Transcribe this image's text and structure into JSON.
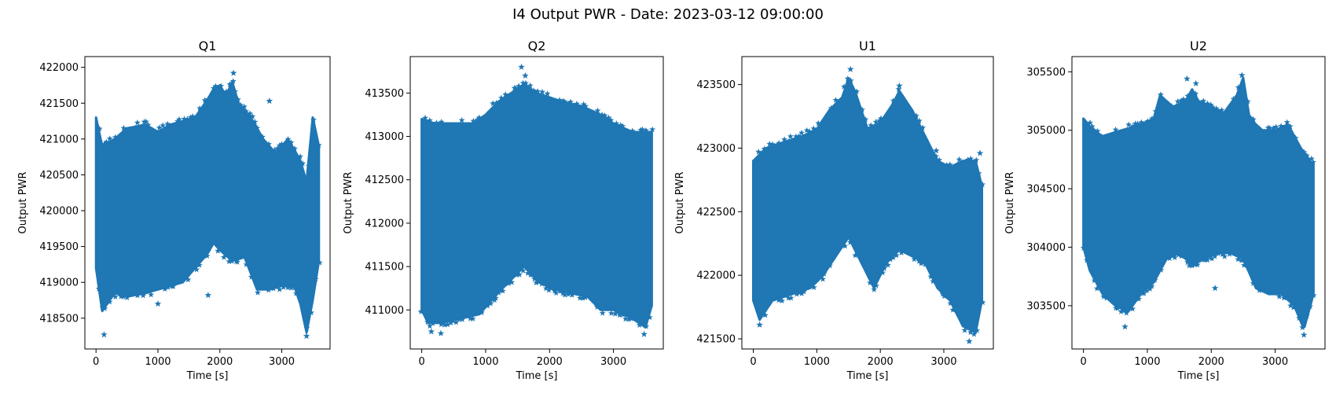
{
  "figure": {
    "title": "I4 Output PWR - Date: 2023-03-12 09:00:00"
  },
  "style": {
    "marker_color": "#1f77b4",
    "marker": "star"
  },
  "chart_data": [
    {
      "type": "scatter",
      "title": "Q1",
      "xlabel": "Time [s]",
      "ylabel": "Output PWR",
      "xlim": [
        -180,
        3780
      ],
      "ylim": [
        418070,
        422150
      ],
      "xticks": [
        0,
        1000,
        2000,
        3000
      ],
      "xtick_labels": [
        "0",
        "1000",
        "2000",
        "3000"
      ],
      "yticks": [
        418500,
        419000,
        419500,
        420000,
        420500,
        421000,
        421500,
        422000
      ],
      "ytick_labels": [
        "418500",
        "419000",
        "419500",
        "420000",
        "420500",
        "421000",
        "421500",
        "422000"
      ],
      "x_range": [
        0,
        3600
      ],
      "upper_envelope": [
        [
          0,
          421300
        ],
        [
          100,
          420900
        ],
        [
          300,
          421000
        ],
        [
          500,
          421150
        ],
        [
          800,
          421200
        ],
        [
          1000,
          421100
        ],
        [
          1200,
          421200
        ],
        [
          1400,
          421250
        ],
        [
          1600,
          421300
        ],
        [
          1800,
          421550
        ],
        [
          1900,
          421700
        ],
        [
          2000,
          421750
        ],
        [
          2100,
          421600
        ],
        [
          2200,
          421800
        ],
        [
          2300,
          421500
        ],
        [
          2500,
          421300
        ],
        [
          2700,
          421000
        ],
        [
          2900,
          420800
        ],
        [
          3100,
          421000
        ],
        [
          3300,
          420700
        ],
        [
          3400,
          420400
        ],
        [
          3500,
          421300
        ],
        [
          3600,
          420900
        ]
      ],
      "lower_envelope": [
        [
          0,
          419200
        ],
        [
          100,
          418600
        ],
        [
          300,
          418850
        ],
        [
          500,
          418800
        ],
        [
          800,
          418850
        ],
        [
          1000,
          418900
        ],
        [
          1200,
          418950
        ],
        [
          1400,
          419000
        ],
        [
          1600,
          419200
        ],
        [
          1800,
          419400
        ],
        [
          1900,
          419550
        ],
        [
          2000,
          419450
        ],
        [
          2200,
          419300
        ],
        [
          2400,
          419350
        ],
        [
          2600,
          418900
        ],
        [
          2800,
          418900
        ],
        [
          3000,
          418950
        ],
        [
          3200,
          418950
        ],
        [
          3300,
          418700
        ],
        [
          3400,
          418300
        ],
        [
          3500,
          418750
        ],
        [
          3600,
          419300
        ]
      ],
      "outliers": [
        [
          130,
          418270
        ],
        [
          2220,
          421920
        ],
        [
          2800,
          421530
        ],
        [
          1810,
          418820
        ],
        [
          1000,
          418700
        ],
        [
          3400,
          418250
        ]
      ]
    },
    {
      "type": "scatter",
      "title": "Q2",
      "xlabel": "Time [s]",
      "ylabel": "Output PWR",
      "xlim": [
        -180,
        3780
      ],
      "ylim": [
        410550,
        413920
      ],
      "xticks": [
        0,
        1000,
        2000,
        3000
      ],
      "xtick_labels": [
        "0",
        "1000",
        "2000",
        "3000"
      ],
      "yticks": [
        411000,
        411500,
        412000,
        412500,
        413000,
        413500
      ],
      "ytick_labels": [
        "411000",
        "411500",
        "412000",
        "412500",
        "413000",
        "413500"
      ],
      "x_range": [
        0,
        3600
      ],
      "upper_envelope": [
        [
          0,
          413200
        ],
        [
          200,
          413150
        ],
        [
          500,
          413150
        ],
        [
          800,
          413150
        ],
        [
          1000,
          413250
        ],
        [
          1200,
          413400
        ],
        [
          1400,
          413500
        ],
        [
          1600,
          413600
        ],
        [
          1800,
          413500
        ],
        [
          2000,
          413450
        ],
        [
          2200,
          413400
        ],
        [
          2500,
          413350
        ],
        [
          2800,
          413250
        ],
        [
          3000,
          413150
        ],
        [
          3300,
          413050
        ],
        [
          3600,
          413050
        ]
      ],
      "lower_envelope": [
        [
          0,
          411000
        ],
        [
          100,
          410850
        ],
        [
          300,
          410850
        ],
        [
          600,
          410900
        ],
        [
          900,
          410950
        ],
        [
          1200,
          411200
        ],
        [
          1400,
          411350
        ],
        [
          1600,
          411500
        ],
        [
          1800,
          411350
        ],
        [
          2000,
          411250
        ],
        [
          2300,
          411200
        ],
        [
          2600,
          411150
        ],
        [
          2800,
          411000
        ],
        [
          3000,
          411000
        ],
        [
          3300,
          410900
        ],
        [
          3500,
          410800
        ],
        [
          3600,
          411050
        ]
      ],
      "outliers": [
        [
          1560,
          413800
        ],
        [
          150,
          410750
        ],
        [
          300,
          410730
        ],
        [
          3480,
          410720
        ],
        [
          1620,
          413700
        ]
      ]
    },
    {
      "type": "scatter",
      "title": "U1",
      "xlabel": "Time [s]",
      "ylabel": "Output PWR",
      "xlim": [
        -180,
        3780
      ],
      "ylim": [
        421420,
        423720
      ],
      "xticks": [
        0,
        1000,
        2000,
        3000
      ],
      "xtick_labels": [
        "0",
        "1000",
        "2000",
        "3000"
      ],
      "yticks": [
        421500,
        422000,
        422500,
        423000,
        423500
      ],
      "ytick_labels": [
        "421500",
        "422000",
        "422500",
        "423000",
        "423500"
      ],
      "x_range": [
        0,
        3600
      ],
      "upper_envelope": [
        [
          0,
          422900
        ],
        [
          200,
          423000
        ],
        [
          500,
          423050
        ],
        [
          800,
          423100
        ],
        [
          1000,
          423150
        ],
        [
          1200,
          423300
        ],
        [
          1400,
          423400
        ],
        [
          1500,
          423550
        ],
        [
          1600,
          423450
        ],
        [
          1800,
          423150
        ],
        [
          2000,
          423200
        ],
        [
          2200,
          423350
        ],
        [
          2300,
          423450
        ],
        [
          2500,
          423300
        ],
        [
          2700,
          423100
        ],
        [
          2900,
          422900
        ],
        [
          3100,
          422850
        ],
        [
          3300,
          422900
        ],
        [
          3500,
          422900
        ],
        [
          3600,
          422700
        ]
      ],
      "lower_envelope": [
        [
          0,
          421800
        ],
        [
          100,
          421650
        ],
        [
          300,
          421800
        ],
        [
          600,
          421850
        ],
        [
          900,
          421900
        ],
        [
          1100,
          422000
        ],
        [
          1300,
          422150
        ],
        [
          1500,
          422300
        ],
        [
          1700,
          422100
        ],
        [
          1900,
          421900
        ],
        [
          2100,
          422100
        ],
        [
          2300,
          422200
        ],
        [
          2500,
          422150
        ],
        [
          2700,
          422100
        ],
        [
          2900,
          421900
        ],
        [
          3100,
          421800
        ],
        [
          3300,
          421600
        ],
        [
          3500,
          421550
        ],
        [
          3600,
          421800
        ]
      ],
      "outliers": [
        [
          1530,
          423620
        ],
        [
          2300,
          423490
        ],
        [
          100,
          421610
        ],
        [
          3400,
          421480
        ],
        [
          2880,
          422980
        ],
        [
          3570,
          422960
        ]
      ]
    },
    {
      "type": "scatter",
      "title": "U2",
      "xlabel": "Time [s]",
      "ylabel": "Output PWR",
      "xlim": [
        -180,
        3780
      ],
      "ylim": [
        303130,
        305630
      ],
      "xticks": [
        0,
        1000,
        2000,
        3000
      ],
      "xtick_labels": [
        "0",
        "1000",
        "2000",
        "3000"
      ],
      "yticks": [
        303500,
        304000,
        304500,
        305000,
        305500
      ],
      "ytick_labels": [
        "303500",
        "304000",
        "304500",
        "305000",
        "305500"
      ],
      "x_range": [
        0,
        3600
      ],
      "upper_envelope": [
        [
          0,
          305100
        ],
        [
          150,
          305000
        ],
        [
          300,
          304950
        ],
        [
          600,
          305000
        ],
        [
          900,
          305050
        ],
        [
          1100,
          305100
        ],
        [
          1200,
          305300
        ],
        [
          1400,
          305200
        ],
        [
          1600,
          305250
        ],
        [
          1700,
          305350
        ],
        [
          1800,
          305250
        ],
        [
          2000,
          305200
        ],
        [
          2200,
          305150
        ],
        [
          2400,
          305300
        ],
        [
          2500,
          305450
        ],
        [
          2600,
          305100
        ],
        [
          2800,
          305000
        ],
        [
          3000,
          305000
        ],
        [
          3200,
          305050
        ],
        [
          3400,
          304850
        ],
        [
          3600,
          304700
        ]
      ],
      "lower_envelope": [
        [
          0,
          304000
        ],
        [
          100,
          303800
        ],
        [
          300,
          303600
        ],
        [
          500,
          303500
        ],
        [
          700,
          303450
        ],
        [
          900,
          303600
        ],
        [
          1100,
          303700
        ],
        [
          1300,
          303900
        ],
        [
          1500,
          303950
        ],
        [
          1700,
          303850
        ],
        [
          1900,
          303900
        ],
        [
          2100,
          303950
        ],
        [
          2300,
          303950
        ],
        [
          2500,
          303900
        ],
        [
          2700,
          303650
        ],
        [
          2900,
          303600
        ],
        [
          3100,
          303600
        ],
        [
          3300,
          303500
        ],
        [
          3450,
          303300
        ],
        [
          3600,
          303600
        ]
      ],
      "outliers": [
        [
          1620,
          305440
        ],
        [
          1760,
          305400
        ],
        [
          2480,
          305470
        ],
        [
          3450,
          303250
        ],
        [
          650,
          303320
        ],
        [
          2060,
          303650
        ]
      ]
    }
  ]
}
